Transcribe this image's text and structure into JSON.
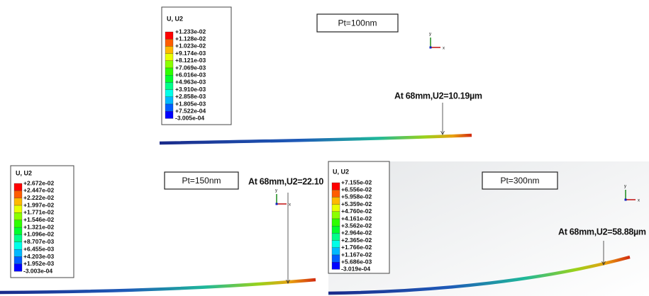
{
  "panels": [
    {
      "legend": {
        "title": "U, U2",
        "values": [
          "+1.233e-02",
          "+1.128e-02",
          "+1.023e-02",
          "+9.174e-03",
          "+8.121e-03",
          "+7.069e-03",
          "+6.016e-03",
          "+4.963e-03",
          "+3.910e-03",
          "+2.858e-03",
          "+1.805e-03",
          "+7.522e-04",
          "-3.005e-04"
        ]
      },
      "label": "Pt=100nm",
      "axes": {
        "y": "y",
        "x": "x"
      },
      "annotation": "At 68mm,U2=10.19µm"
    },
    {
      "legend": {
        "title": "U, U2",
        "values": [
          "+2.672e-02",
          "+2.447e-02",
          "+2.222e-02",
          "+1.997e-02",
          "+1.771e-02",
          "+1.546e-02",
          "+1.321e-02",
          "+1.096e-02",
          "+8.707e-03",
          "+6.455e-03",
          "+4.203e-03",
          "+1.952e-03",
          "-3.003e-04"
        ]
      },
      "label": "Pt=150nm",
      "axes": {
        "y": "y",
        "x": "x"
      },
      "annotation": "At 68mm,U2=22.10"
    },
    {
      "legend": {
        "title": "U, U2",
        "values": [
          "+7.155e-02",
          "+6.556e-02",
          "+5.958e-02",
          "+5.359e-02",
          "+4.760e-02",
          "+4.161e-02",
          "+3.562e-02",
          "+2.964e-02",
          "+2.365e-02",
          "+1.766e-02",
          "+1.167e-02",
          "+5.686e-03",
          "-3.019e-04"
        ]
      },
      "label": "Pt=300nm",
      "axes": {
        "y": "y",
        "x": "x"
      },
      "annotation": "At 68mm,U2=58.88µm"
    }
  ]
}
